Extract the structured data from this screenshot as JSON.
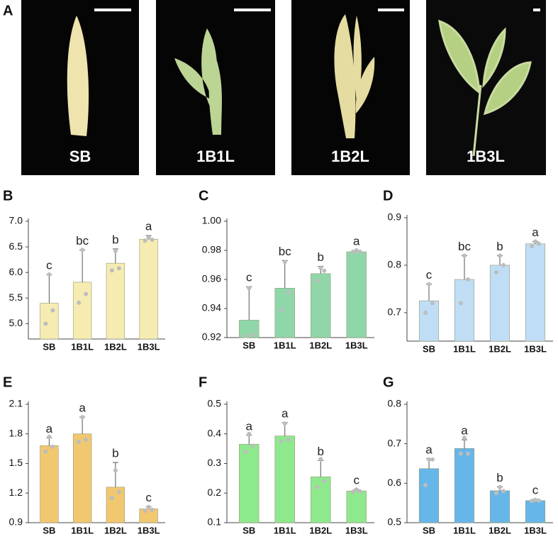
{
  "panel_a": {
    "letter": "A",
    "photos": [
      "SB",
      "1B1L",
      "1B2L",
      "1B3L"
    ]
  },
  "chart_data": [
    {
      "type": "bar",
      "letter": "B",
      "categories": [
        "SB",
        "1B1L",
        "1B2L",
        "1B3L"
      ],
      "values": [
        5.4,
        5.81,
        6.18,
        6.65
      ],
      "errors": [
        0.56,
        0.63,
        0.28,
        0.07
      ],
      "annotations": [
        "c",
        "bc",
        "b",
        "a"
      ],
      "points": [
        [
          5.96,
          5.26,
          5.0
        ],
        [
          6.44,
          5.58,
          5.41
        ],
        [
          6.42,
          6.08,
          6.04
        ],
        [
          6.68,
          6.64,
          6.62
        ]
      ],
      "color": "#f6ecb2",
      "ylim": [
        4.7,
        7.0
      ],
      "yticks": [
        {
          "value": 5.0,
          "label": "5.0"
        },
        5.5,
        {
          "value": 6.0,
          "label": "6.0"
        },
        6.5,
        {
          "value": 7.0,
          "label": "7.0"
        }
      ]
    },
    {
      "type": "bar",
      "letter": "C",
      "categories": [
        "SB",
        "1B1L",
        "1B2L",
        "1B3L"
      ],
      "values": [
        0.932,
        0.954,
        0.964,
        0.979
      ],
      "errors": [
        0.023,
        0.019,
        0.005,
        0.001
      ],
      "annotations": [
        "c",
        "bc",
        "b",
        "a"
      ],
      "points": [
        [
          0.954,
          0.922,
          0.921
        ],
        [
          0.972,
          0.951,
          0.939
        ],
        [
          0.968,
          0.966,
          0.959
        ],
        [
          0.98,
          0.979,
          0.979
        ]
      ],
      "color": "#8fd7a9",
      "ylim": [
        0.92,
        1.0
      ],
      "yticks": [
        0.92,
        0.94,
        0.96,
        0.98,
        {
          "value": 1.0,
          "label": "1.00"
        }
      ]
    },
    {
      "type": "bar",
      "letter": "D",
      "categories": [
        "SB",
        "1B1L",
        "1B2L",
        "1B3L"
      ],
      "values": [
        0.725,
        0.77,
        0.8,
        0.845
      ],
      "errors": [
        0.035,
        0.05,
        0.02,
        0.005
      ],
      "annotations": [
        "c",
        "bc",
        "b",
        "a"
      ],
      "points": [
        [
          0.76,
          0.72,
          0.7
        ],
        [
          0.82,
          0.77,
          0.72
        ],
        [
          0.82,
          0.8,
          0.785
        ],
        [
          0.85,
          0.845,
          0.84
        ]
      ],
      "color": "#bfdef6",
      "ylim": [
        0.64,
        0.9
      ],
      "yticks": [
        0.7,
        0.8,
        0.9
      ]
    },
    {
      "type": "bar",
      "letter": "E",
      "categories": [
        "SB",
        "1B1L",
        "1B2L",
        "1B3L"
      ],
      "values": [
        1.68,
        1.8,
        1.26,
        1.04
      ],
      "errors": [
        0.08,
        0.17,
        0.25,
        0.02
      ],
      "annotations": [
        "a",
        "a",
        "b",
        "c"
      ],
      "points": [
        [
          1.77,
          1.67,
          1.62
        ],
        [
          1.97,
          1.74,
          1.72
        ],
        [
          1.43,
          1.21,
          1.15
        ],
        [
          1.06,
          1.03,
          1.02
        ]
      ],
      "color": "#f1c770",
      "ylim": [
        0.9,
        2.1
      ],
      "yticks": [
        0.9,
        1.2,
        1.5,
        1.8,
        2.1
      ]
    },
    {
      "type": "bar",
      "letter": "F",
      "categories": [
        "SB",
        "1B1L",
        "1B2L",
        "1B3L"
      ],
      "values": [
        0.365,
        0.393,
        0.255,
        0.207
      ],
      "errors": [
        0.03,
        0.045,
        0.055,
        0.005
      ],
      "annotations": [
        "a",
        "a",
        "b",
        "c"
      ],
      "points": [
        [
          0.4,
          0.36,
          0.34
        ],
        [
          0.435,
          0.38,
          0.375
        ],
        [
          0.315,
          0.24,
          0.22
        ],
        [
          0.212,
          0.206,
          0.204
        ]
      ],
      "color": "#8ee98d",
      "ylim": [
        0.1,
        0.5
      ],
      "yticks": [
        0.1,
        0.2,
        0.3,
        0.4,
        0.5
      ]
    },
    {
      "type": "bar",
      "letter": "G",
      "categories": [
        "SB",
        "1B1L",
        "1B2L",
        "1B3L"
      ],
      "values": [
        0.637,
        0.688,
        0.581,
        0.556
      ],
      "errors": [
        0.025,
        0.022,
        0.01,
        0.003
      ],
      "annotations": [
        "a",
        "a",
        "b",
        "c"
      ],
      "points": [
        [
          0.66,
          0.66,
          0.595
        ],
        [
          0.715,
          0.675,
          0.675
        ],
        [
          0.59,
          0.58,
          0.575
        ],
        [
          0.558,
          0.556,
          0.555
        ]
      ],
      "color": "#66b6ea",
      "ylim": [
        0.5,
        0.8
      ],
      "yticks": [
        0.5,
        0.6,
        0.7,
        0.8
      ]
    }
  ]
}
